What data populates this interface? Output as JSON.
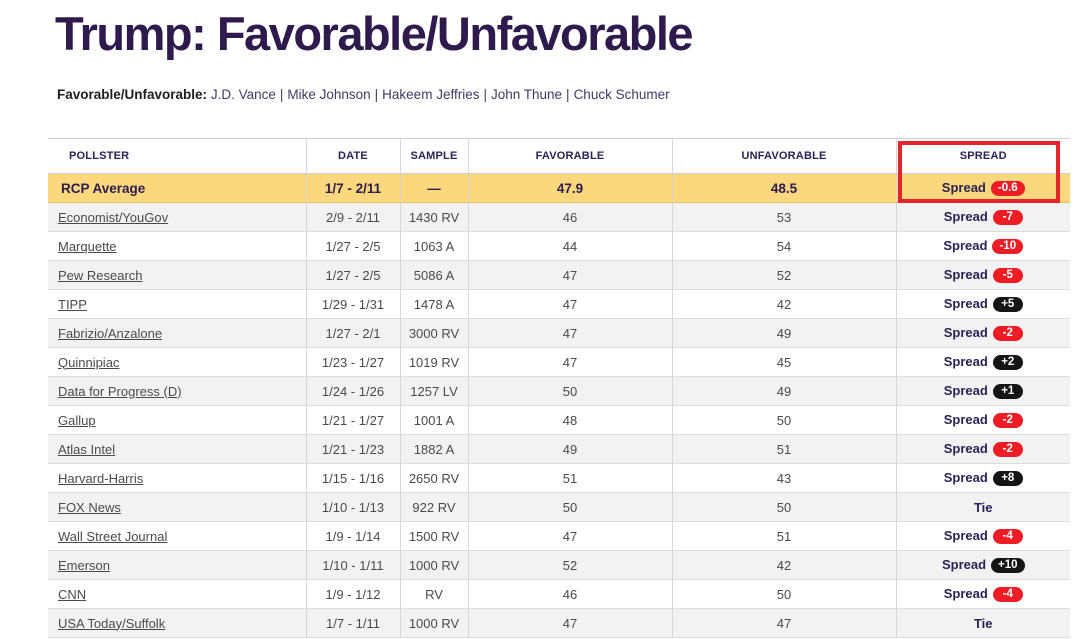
{
  "page": {
    "title": "Trump: Favorable/Unfavorable"
  },
  "subtitle": {
    "label": "Favorable/Unfavorable:",
    "separator": "|",
    "links": [
      "J.D. Vance",
      "Mike Johnson",
      "Hakeem Jeffries",
      "John Thune",
      "Chuck Schumer"
    ]
  },
  "table": {
    "headers": [
      "POLLSTER",
      "DATE",
      "SAMPLE",
      "FAVORABLE",
      "UNFAVORABLE",
      "SPREAD"
    ],
    "average": {
      "pollster": "RCP Average",
      "date": "1/7 - 2/11",
      "sample": "—",
      "favorable": "47.9",
      "unfavorable": "48.5",
      "spread_label": "Spread",
      "spread_value": "-0.6",
      "spread_type": "negative"
    },
    "rows": [
      {
        "pollster": "Economist/YouGov",
        "date": "2/9 - 2/11",
        "sample": "1430 RV",
        "favorable": "46",
        "unfavorable": "53",
        "spread_label": "Spread",
        "spread_value": "-7",
        "spread_type": "negative"
      },
      {
        "pollster": "Marquette",
        "date": "1/27 - 2/5",
        "sample": "1063 A",
        "favorable": "44",
        "unfavorable": "54",
        "spread_label": "Spread",
        "spread_value": "-10",
        "spread_type": "negative"
      },
      {
        "pollster": "Pew Research",
        "date": "1/27 - 2/5",
        "sample": "5086 A",
        "favorable": "47",
        "unfavorable": "52",
        "spread_label": "Spread",
        "spread_value": "-5",
        "spread_type": "negative"
      },
      {
        "pollster": "TIPP",
        "date": "1/29 - 1/31",
        "sample": "1478 A",
        "favorable": "47",
        "unfavorable": "42",
        "spread_label": "Spread",
        "spread_value": "+5",
        "spread_type": "positive"
      },
      {
        "pollster": "Fabrizio/Anzalone",
        "date": "1/27 - 2/1",
        "sample": "3000 RV",
        "favorable": "47",
        "unfavorable": "49",
        "spread_label": "Spread",
        "spread_value": "-2",
        "spread_type": "negative"
      },
      {
        "pollster": "Quinnipiac",
        "date": "1/23 - 1/27",
        "sample": "1019 RV",
        "favorable": "47",
        "unfavorable": "45",
        "spread_label": "Spread",
        "spread_value": "+2",
        "spread_type": "positive"
      },
      {
        "pollster": "Data for Progress (D)",
        "date": "1/24 - 1/26",
        "sample": "1257 LV",
        "favorable": "50",
        "unfavorable": "49",
        "spread_label": "Spread",
        "spread_value": "+1",
        "spread_type": "positive"
      },
      {
        "pollster": "Gallup",
        "date": "1/21 - 1/27",
        "sample": "1001 A",
        "favorable": "48",
        "unfavorable": "50",
        "spread_label": "Spread",
        "spread_value": "-2",
        "spread_type": "negative"
      },
      {
        "pollster": "Atlas Intel",
        "date": "1/21 - 1/23",
        "sample": "1882 A",
        "favorable": "49",
        "unfavorable": "51",
        "spread_label": "Spread",
        "spread_value": "-2",
        "spread_type": "negative"
      },
      {
        "pollster": "Harvard-Harris",
        "date": "1/15 - 1/16",
        "sample": "2650 RV",
        "favorable": "51",
        "unfavorable": "43",
        "spread_label": "Spread",
        "spread_value": "+8",
        "spread_type": "positive"
      },
      {
        "pollster": "FOX News",
        "date": "1/10 - 1/13",
        "sample": "922 RV",
        "favorable": "50",
        "unfavorable": "50",
        "spread_label": "Tie",
        "spread_value": "",
        "spread_type": "tie"
      },
      {
        "pollster": "Wall Street Journal",
        "date": "1/9 - 1/14",
        "sample": "1500 RV",
        "favorable": "47",
        "unfavorable": "51",
        "spread_label": "Spread",
        "spread_value": "-4",
        "spread_type": "negative"
      },
      {
        "pollster": "Emerson",
        "date": "1/10 - 1/11",
        "sample": "1000 RV",
        "favorable": "52",
        "unfavorable": "42",
        "spread_label": "Spread",
        "spread_value": "+10",
        "spread_type": "positive"
      },
      {
        "pollster": "CNN",
        "date": "1/9 - 1/12",
        "sample": "RV",
        "favorable": "46",
        "unfavorable": "50",
        "spread_label": "Spread",
        "spread_value": "-4",
        "spread_type": "negative"
      },
      {
        "pollster": "USA Today/Suffolk",
        "date": "1/7 - 1/11",
        "sample": "1000 RV",
        "favorable": "47",
        "unfavorable": "47",
        "spread_label": "Tie",
        "spread_value": "",
        "spread_type": "tie"
      }
    ]
  },
  "annotation": {
    "color": "#e3242b"
  },
  "colors": {
    "title": "#2e1a4d",
    "header_text": "#2b2257",
    "highlight_row": "#fbd77e",
    "pill_negative": "#ee1c25",
    "pill_positive": "#151515"
  }
}
